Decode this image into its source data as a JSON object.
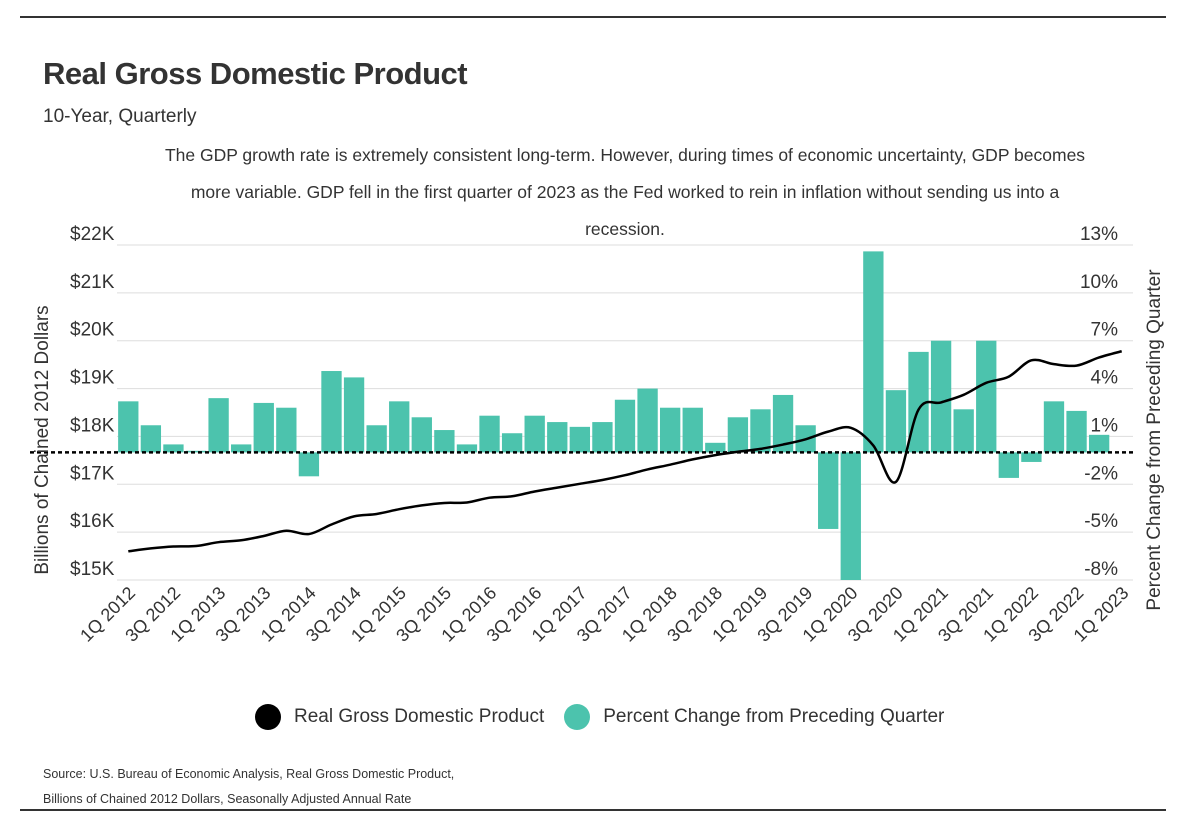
{
  "title": "Real Gross Domestic Product",
  "subtitle": "10-Year, Quarterly",
  "annotation": "The GDP growth rate is extremely consistent long-term. However, during times of economic uncertainty, GDP becomes more variable. GDP fell in the first quarter of 2023 as the Fed worked to rein in inflation without sending us into a recession.",
  "source_line1": "Source:  U.S. Bureau of Economic Analysis, Real Gross Domestic Product,",
  "source_line2": "Billions of Chained 2012 Dollars, Seasonally Adjusted Annual Rate",
  "legend": [
    {
      "label": "Real Gross Domestic Product",
      "color": "#000000"
    },
    {
      "label": "Percent Change from Preceding Quarter",
      "color": "#4cc3ad"
    }
  ],
  "colors": {
    "line": "#000000",
    "bar": "#4cc3ad",
    "grid": "#dddddd",
    "text": "#333333"
  },
  "chart_data": {
    "type": "bar+line",
    "title": "Real Gross Domestic Product",
    "subtitle": "10-Year, Quarterly",
    "categories": [
      "1Q 2012",
      "2Q 2012",
      "3Q 2012",
      "4Q 2012",
      "1Q 2013",
      "2Q 2013",
      "3Q 2013",
      "4Q 2013",
      "1Q 2014",
      "2Q 2014",
      "3Q 2014",
      "4Q 2014",
      "1Q 2015",
      "2Q 2015",
      "3Q 2015",
      "4Q 2015",
      "1Q 2016",
      "2Q 2016",
      "3Q 2016",
      "4Q 2016",
      "1Q 2017",
      "2Q 2017",
      "3Q 2017",
      "4Q 2017",
      "1Q 2018",
      "2Q 2018",
      "3Q 2018",
      "4Q 2018",
      "1Q 2019",
      "2Q 2019",
      "3Q 2019",
      "4Q 2019",
      "1Q 2020",
      "2Q 2020",
      "3Q 2020",
      "4Q 2020",
      "1Q 2021",
      "2Q 2021",
      "3Q 2021",
      "4Q 2021",
      "1Q 2022",
      "2Q 2022",
      "3Q 2022",
      "4Q 2022",
      "1Q 2023"
    ],
    "x_tick_labels": [
      "1Q 2012",
      "3Q 2012",
      "1Q 2013",
      "3Q 2013",
      "1Q 2014",
      "3Q 2014",
      "1Q 2015",
      "3Q 2015",
      "1Q 2016",
      "3Q 2016",
      "1Q 2017",
      "3Q 2017",
      "1Q 2018",
      "3Q 2018",
      "1Q 2019",
      "3Q 2019",
      "1Q 2020",
      "3Q 2020",
      "1Q 2021",
      "3Q 2021",
      "1Q 2022",
      "3Q 2022",
      "1Q 2023"
    ],
    "series": [
      {
        "name": "Real Gross Domestic Product",
        "type": "line",
        "axis": "left",
        "values": [
          15600,
          15660,
          15700,
          15710,
          15790,
          15830,
          15920,
          16030,
          15960,
          16160,
          16330,
          16380,
          16480,
          16560,
          16610,
          16620,
          16720,
          16750,
          16850,
          16930,
          17010,
          17090,
          17190,
          17310,
          17410,
          17520,
          17610,
          17680,
          17740,
          17830,
          17940,
          18100,
          18180,
          17810,
          17050,
          18560,
          18710,
          18870,
          19120,
          19250,
          19590,
          19510,
          19480,
          19650,
          19780
        ]
      },
      {
        "name": "Percent Change from Preceding Quarter",
        "type": "bar",
        "axis": "right",
        "values": [
          3.2,
          1.7,
          0.5,
          0.1,
          3.4,
          0.5,
          3.1,
          2.8,
          -1.5,
          5.1,
          4.7,
          1.7,
          3.2,
          2.2,
          1.4,
          0.5,
          2.3,
          1.2,
          2.3,
          1.9,
          1.6,
          1.9,
          3.3,
          4.0,
          2.8,
          2.8,
          0.6,
          2.2,
          2.7,
          3.6,
          1.7,
          -4.8,
          -8.0,
          12.6,
          3.9,
          6.3,
          7.0,
          2.7,
          7.0,
          -1.6,
          -0.6,
          3.2,
          2.6,
          1.1,
          0
        ]
      }
    ],
    "y_left": {
      "label": "Billions of Chained 2012 Dollars",
      "range": [
        15000,
        22000
      ],
      "ticks": [
        "$15K",
        "$16K",
        "$17K",
        "$18K",
        "$19K",
        "$20K",
        "$21K",
        "$22K"
      ]
    },
    "y_right": {
      "label": "Percent Change from Preceding Quarter",
      "range": [
        -8,
        13
      ],
      "ticks": [
        "-8%",
        "-5%",
        "-2%",
        "1%",
        "4%",
        "7%",
        "10%",
        "13%"
      ]
    },
    "zero_line": "dashed",
    "grid": true,
    "legend_position": "bottom"
  }
}
